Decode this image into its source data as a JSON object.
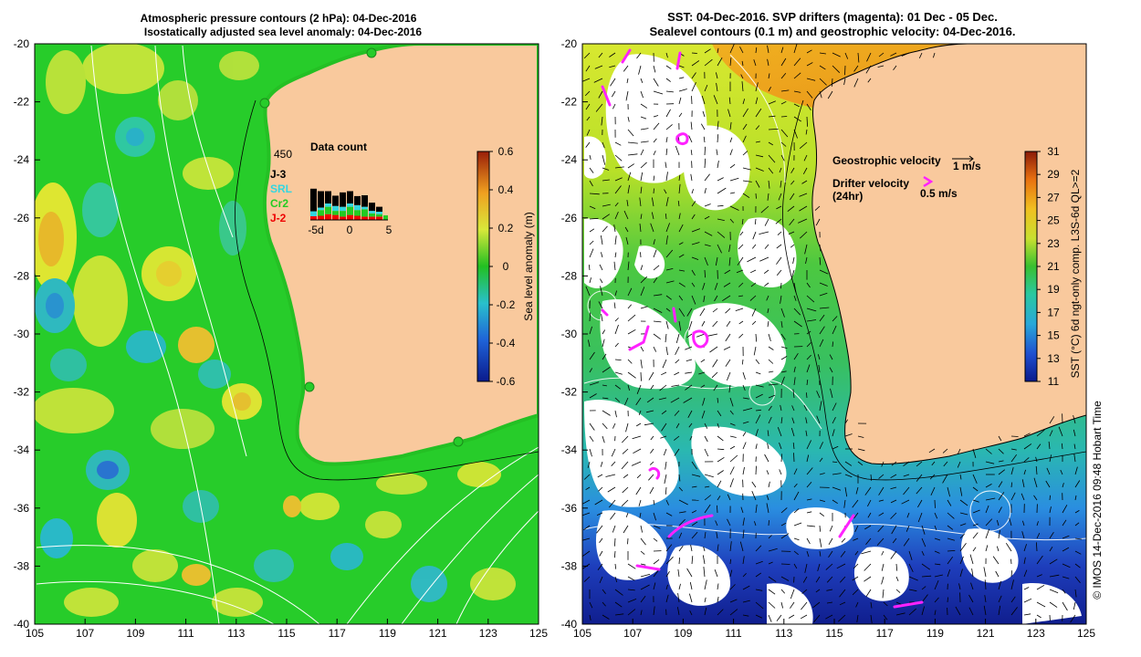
{
  "left_map": {
    "title_line1": "Atmospheric pressure contours (2 hPa): 04-Dec-2016",
    "title_line2": "Isostatically adjusted sea level anomaly: 04-Dec-2016",
    "colorbar": {
      "label": "Sea level anomaly (m)",
      "ticks": [
        "0.6",
        "0.4",
        "0.2",
        "0",
        "-0.2",
        "-0.4",
        "-0.6"
      ],
      "range": [
        -0.6,
        0.6
      ]
    },
    "inset": {
      "title": "Data count",
      "max_count": "450",
      "legend": [
        {
          "label": "J-3",
          "color": "#000000"
        },
        {
          "label": "SRL",
          "color": "#33d6e0"
        },
        {
          "label": "Cr2",
          "color": "#22cc22"
        },
        {
          "label": "J-2",
          "color": "#ee0000"
        }
      ],
      "x_ticks": [
        "-5d",
        "0",
        "5"
      ]
    }
  },
  "right_map": {
    "title_line1": "SST: 04-Dec-2016. SVP drifters (magenta): 01 Dec - 05 Dec.",
    "title_line2": "Sealevel contours (0.1 m) and geostrophic velocity: 04-Dec-2016.",
    "legend": {
      "geo_label": "Geostrophic velocity",
      "geo_scale": "1 m/s",
      "drifter_label_1": "Drifter velocity",
      "drifter_label_2": "(24hr)",
      "drifter_scale": "0.5 m/s"
    },
    "colorbar": {
      "label": "SST (°C) 6d ngt-only comp. L3S-6d QL>=2",
      "ticks": [
        "31",
        "29",
        "27",
        "25",
        "23",
        "21",
        "19",
        "17",
        "15",
        "13",
        "11"
      ],
      "range": [
        11,
        31
      ]
    },
    "credit": "© IMOS 14-Dec-2016 09:48 Hobart Time"
  },
  "axes": {
    "lon_ticks": [
      "105",
      "107",
      "109",
      "111",
      "113",
      "115",
      "117",
      "119",
      "121",
      "123",
      "125"
    ],
    "lat_ticks": [
      "-20",
      "-22",
      "-24",
      "-26",
      "-28",
      "-30",
      "-32",
      "-34",
      "-36",
      "-38",
      "-40"
    ],
    "lon_range": [
      105,
      125
    ],
    "lat_range": [
      -40,
      -20
    ]
  },
  "colors": {
    "land": "#f9c99d",
    "ocean_left": "#27cc2a",
    "ocean_right": "#ffffff"
  }
}
